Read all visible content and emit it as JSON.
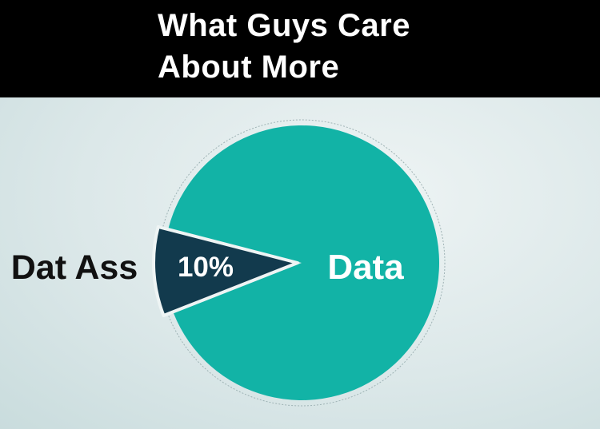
{
  "header": {
    "title_line1": "What Guys Care",
    "title_line2": "About More"
  },
  "chart_data": {
    "type": "pie",
    "title": "What Guys Care About More",
    "slices": [
      {
        "label": "Dat Ass",
        "value": 10,
        "value_label": "10%",
        "color": "#123a4d"
      },
      {
        "label": "Data",
        "value": 90,
        "value_label": "",
        "color": "#12b3a6"
      }
    ],
    "start_angle_deg": 158.5,
    "legend": "none"
  }
}
